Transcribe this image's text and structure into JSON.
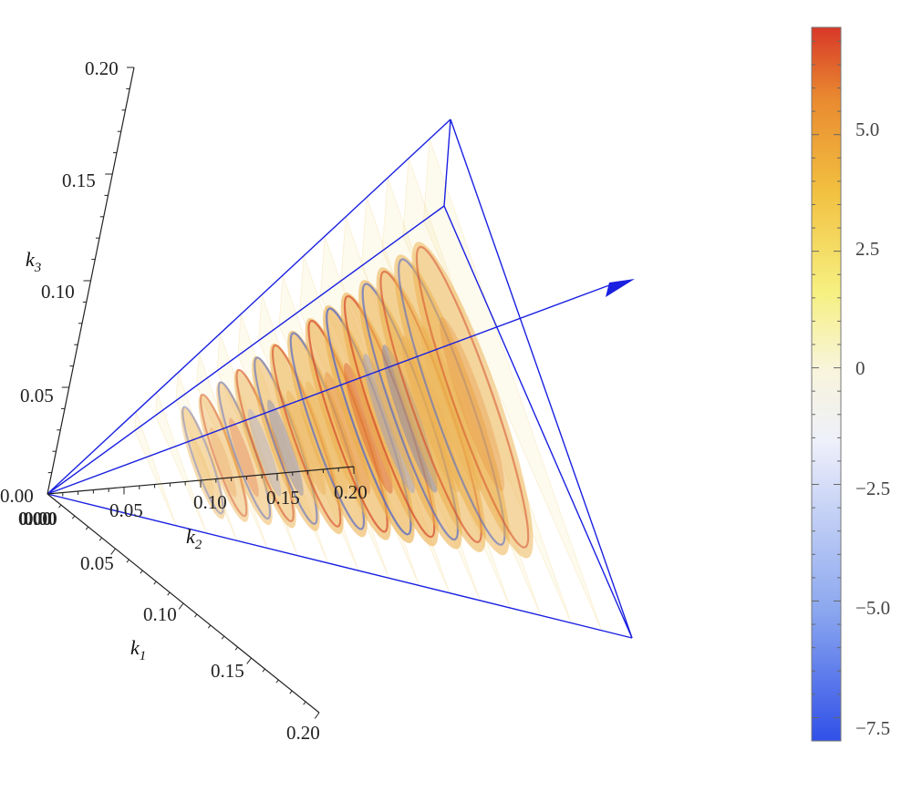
{
  "chart_data": {
    "type": "3d-density-slices",
    "axes": {
      "k1": {
        "label": "k",
        "sub": "1",
        "range": [
          0,
          0.2
        ],
        "ticks": [
          "0.00",
          "0.05",
          "0.10",
          "0.15",
          "0.20"
        ]
      },
      "k2": {
        "label": "k",
        "sub": "2",
        "range": [
          0,
          0.2
        ],
        "ticks": [
          "0.00",
          "0.05",
          "0.10",
          "0.15",
          "0.20"
        ]
      },
      "k3": {
        "label": "k",
        "sub": "3",
        "range": [
          0,
          0.2
        ],
        "ticks": [
          "0.00",
          "0.05",
          "0.10",
          "0.15",
          "0.20"
        ]
      }
    },
    "colorbar": {
      "min": -8.0,
      "max": 7.3,
      "ticks": [
        "5.0",
        "2.5",
        "0",
        "−2.5",
        "−5.0",
        "−7.5"
      ],
      "tick_values": [
        5.0,
        2.5,
        0,
        -2.5,
        -5.0,
        -7.5
      ],
      "colors": [
        "#3050e8",
        "#8aa6ef",
        "#eef0fa",
        "#f8f4dc",
        "#f6f080",
        "#f2c040",
        "#e98a30",
        "#d83828"
      ]
    },
    "slice_count": 14,
    "outline_color": "#1a20e0"
  }
}
